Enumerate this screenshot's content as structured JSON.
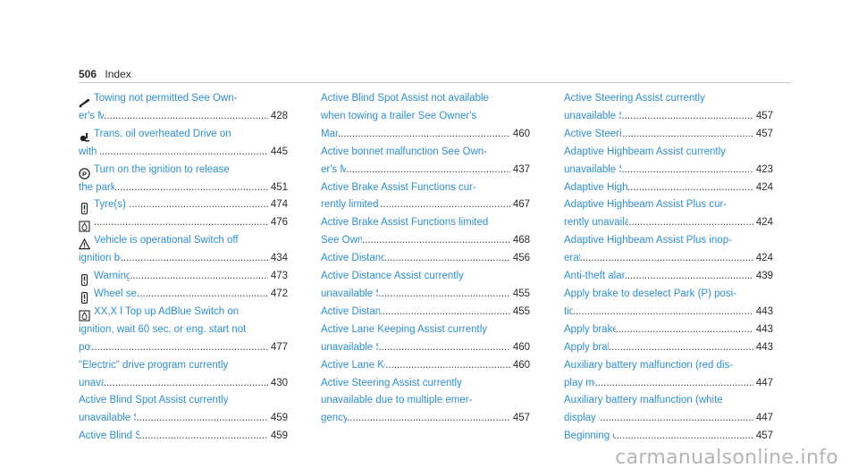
{
  "header": {
    "page_number": "506",
    "section": "Index"
  },
  "columns": [
    [
      {
        "icon": "tow-icon",
        "lines": [
          "Towing not permitted See Own-",
          "er's Manual"
        ],
        "page": "428"
      },
      {
        "icon": "gearbox-temperature-icon",
        "lines": [
          "Trans. oil overheated Drive on",
          "with care"
        ],
        "page": "445"
      },
      {
        "icon": "parking-brake-icon",
        "lines": [
          "Turn on the ignition to release",
          "the parking brake"
        ],
        "page": "451"
      },
      {
        "icon": "tyre-icon",
        "lines": [
          "Tyre(s) overheated"
        ],
        "page": "474"
      },
      {
        "icon": "adblue-icon",
        "lines": [
          ""
        ],
        "page": "476"
      },
      {
        "icon": "warning-triangle-icon",
        "lines": [
          "Vehicle is operational Switch off",
          "ignition before exiting"
        ],
        "page": "434"
      },
      {
        "icon": "tyre-icon",
        "lines": [
          "Warning tyre defect"
        ],
        "page": "473"
      },
      {
        "icon": "tyre-icon",
        "lines": [
          "Wheel sensor(s) missing"
        ],
        "page": "472"
      },
      {
        "icon": "adblue-icon",
        "lines": [
          "XX,X l Top up AdBlue Switch on",
          "ignition, wait 60 sec. or eng. start not",
          "poss."
        ],
        "page": "477"
      },
      {
        "icon": "",
        "lines": [
          "\"Electric\" drive program currently",
          "unavailable"
        ],
        "page": "430"
      },
      {
        "icon": "",
        "lines": [
          "Active Blind Spot Assist currently",
          "unavailable See Owner's Manual"
        ],
        "page": "459"
      },
      {
        "icon": "",
        "lines": [
          "Active Blind Spot Assist inoperative"
        ],
        "page": "459"
      }
    ],
    [
      {
        "icon": "",
        "lines": [
          "Active Blind Spot Assist not available",
          "when towing a trailer See Owner's",
          "Manual"
        ],
        "page": "460"
      },
      {
        "icon": "",
        "lines": [
          "Active bonnet malfunction See Own-",
          "er's Manual"
        ],
        "page": "437"
      },
      {
        "icon": "",
        "lines": [
          "Active Brake Assist Functions cur-",
          "rently limited See Owner's Manual"
        ],
        "page": "467"
      },
      {
        "icon": "",
        "lines": [
          "Active Brake Assist Functions limited",
          "See Owner's Manual"
        ],
        "page": "468"
      },
      {
        "icon": "",
        "lines": [
          "Active Distance Assist available again"
        ],
        "page": "456"
      },
      {
        "icon": "",
        "lines": [
          "Active Distance Assist currently",
          "unavailable See Owner's Manual"
        ],
        "page": "455"
      },
      {
        "icon": "",
        "lines": [
          "Active Distance Assist inoperative"
        ],
        "page": "455"
      },
      {
        "icon": "",
        "lines": [
          "Active Lane Keeping Assist currently",
          "unavailable See Owner's Manual"
        ],
        "page": "460"
      },
      {
        "icon": "",
        "lines": [
          "Active Lane Keeping Assist inoperative"
        ],
        "page": "460"
      },
      {
        "icon": "",
        "lines": [
          "Active Steering Assist currently",
          "unavailable due to multiple emer-",
          "gency stops"
        ],
        "page": "457"
      }
    ],
    [
      {
        "icon": "",
        "lines": [
          "Active Steering Assist currently",
          "unavailable See Owner's Manual"
        ],
        "page": "457"
      },
      {
        "icon": "",
        "lines": [
          "Active Steering Assist inoperative"
        ],
        "page": "457"
      },
      {
        "icon": "",
        "lines": [
          "Adaptive Highbeam Assist currently",
          "unavailable See Owner's Manual"
        ],
        "page": "423"
      },
      {
        "icon": "",
        "lines": [
          "Adaptive Highbeam Assist inoperative"
        ],
        "page": "424"
      },
      {
        "icon": "",
        "lines": [
          "Adaptive Highbeam Assist Plus cur-",
          "rently unavailable See Owner's Manual"
        ],
        "page": "424"
      },
      {
        "icon": "",
        "lines": [
          "Adaptive Highbeam Assist Plus inop-",
          "erative"
        ],
        "page": "424"
      },
      {
        "icon": "",
        "lines": [
          "Anti-theft alarm system Malfunction"
        ],
        "page": "439"
      },
      {
        "icon": "",
        "lines": [
          "Apply brake to deselect Park (P) posi-",
          "tion"
        ],
        "page": "443"
      },
      {
        "icon": "",
        "lines": [
          "Apply brake to select D or R"
        ],
        "page": "443"
      },
      {
        "icon": "",
        "lines": [
          "Apply brake to select R"
        ],
        "page": "443"
      },
      {
        "icon": "",
        "lines": [
          "Auxiliary battery malfunction  (red dis-",
          "play message)"
        ],
        "page": "447"
      },
      {
        "icon": "",
        "lines": [
          "Auxiliary battery malfunction  (white",
          "display message)"
        ],
        "page": "447"
      },
      {
        "icon": "",
        "lines": [
          "Beginning emergency stop"
        ],
        "page": "457"
      }
    ]
  ],
  "footer": {
    "watermark": "carmanualsonline.info"
  }
}
